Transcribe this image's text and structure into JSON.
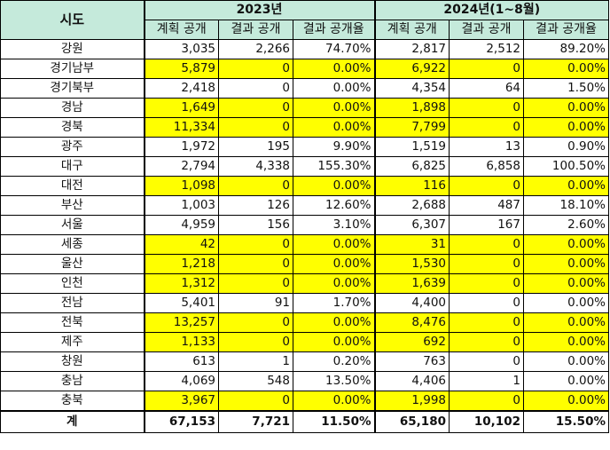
{
  "header": {
    "region": "시도",
    "year_2023": "2023년",
    "year_2024": "2024년(1~8월)",
    "cols": [
      "계획 공개",
      "결과 공개",
      "결과 공개율"
    ]
  },
  "rows": [
    {
      "region": "강원",
      "p23": "3,035",
      "r23": "2,266",
      "pct23": "74.70%",
      "p24": "2,817",
      "r24": "2,512",
      "pct24": "89.20%",
      "hl23": false,
      "hl24": false
    },
    {
      "region": "경기남부",
      "p23": "5,879",
      "r23": "0",
      "pct23": "0.00%",
      "p24": "6,922",
      "r24": "0",
      "pct24": "0.00%",
      "hl23": true,
      "hl24": true
    },
    {
      "region": "경기북부",
      "p23": "2,418",
      "r23": "0",
      "pct23": "0.00%",
      "p24": "4,354",
      "r24": "64",
      "pct24": "1.50%",
      "hl23": false,
      "hl24": false
    },
    {
      "region": "경남",
      "p23": "1,649",
      "r23": "0",
      "pct23": "0.00%",
      "p24": "1,898",
      "r24": "0",
      "pct24": "0.00%",
      "hl23": true,
      "hl24": true
    },
    {
      "region": "경북",
      "p23": "11,334",
      "r23": "0",
      "pct23": "0.00%",
      "p24": "7,799",
      "r24": "0",
      "pct24": "0.00%",
      "hl23": true,
      "hl24": true
    },
    {
      "region": "광주",
      "p23": "1,972",
      "r23": "195",
      "pct23": "9.90%",
      "p24": "1,519",
      "r24": "13",
      "pct24": "0.90%",
      "hl23": false,
      "hl24": false
    },
    {
      "region": "대구",
      "p23": "2,794",
      "r23": "4,338",
      "pct23": "155.30%",
      "p24": "6,825",
      "r24": "6,858",
      "pct24": "100.50%",
      "hl23": false,
      "hl24": false
    },
    {
      "region": "대전",
      "p23": "1,098",
      "r23": "0",
      "pct23": "0.00%",
      "p24": "116",
      "r24": "0",
      "pct24": "0.00%",
      "hl23": true,
      "hl24": true
    },
    {
      "region": "부산",
      "p23": "1,003",
      "r23": "126",
      "pct23": "12.60%",
      "p24": "2,688",
      "r24": "487",
      "pct24": "18.10%",
      "hl23": false,
      "hl24": false
    },
    {
      "region": "서울",
      "p23": "4,959",
      "r23": "156",
      "pct23": "3.10%",
      "p24": "6,307",
      "r24": "167",
      "pct24": "2.60%",
      "hl23": false,
      "hl24": false
    },
    {
      "region": "세종",
      "p23": "42",
      "r23": "0",
      "pct23": "0.00%",
      "p24": "31",
      "r24": "0",
      "pct24": "0.00%",
      "hl23": true,
      "hl24": true
    },
    {
      "region": "울산",
      "p23": "1,218",
      "r23": "0",
      "pct23": "0.00%",
      "p24": "1,530",
      "r24": "0",
      "pct24": "0.00%",
      "hl23": true,
      "hl24": true
    },
    {
      "region": "인천",
      "p23": "1,312",
      "r23": "0",
      "pct23": "0.00%",
      "p24": "1,639",
      "r24": "0",
      "pct24": "0.00%",
      "hl23": true,
      "hl24": true
    },
    {
      "region": "전남",
      "p23": "5,401",
      "r23": "91",
      "pct23": "1.70%",
      "p24": "4,400",
      "r24": "0",
      "pct24": "0.00%",
      "hl23": false,
      "hl24": false
    },
    {
      "region": "전북",
      "p23": "13,257",
      "r23": "0",
      "pct23": "0.00%",
      "p24": "8,476",
      "r24": "0",
      "pct24": "0.00%",
      "hl23": true,
      "hl24": true
    },
    {
      "region": "제주",
      "p23": "1,133",
      "r23": "0",
      "pct23": "0.00%",
      "p24": "692",
      "r24": "0",
      "pct24": "0.00%",
      "hl23": true,
      "hl24": true
    },
    {
      "region": "창원",
      "p23": "613",
      "r23": "1",
      "pct23": "0.20%",
      "p24": "763",
      "r24": "0",
      "pct24": "0.00%",
      "hl23": false,
      "hl24": false
    },
    {
      "region": "충남",
      "p23": "4,069",
      "r23": "548",
      "pct23": "13.50%",
      "p24": "4,406",
      "r24": "1",
      "pct24": "0.00%",
      "hl23": false,
      "hl24": false
    },
    {
      "region": "충북",
      "p23": "3,967",
      "r23": "0",
      "pct23": "0.00%",
      "p24": "1,998",
      "r24": "0",
      "pct24": "0.00%",
      "hl23": true,
      "hl24": true
    }
  ],
  "total": {
    "region": "계",
    "p23": "67,153",
    "r23": "7,721",
    "pct23": "11.50%",
    "p24": "65,180",
    "r24": "10,102",
    "pct24": "15.50%"
  },
  "colors": {
    "header_bg": "#c5eadb",
    "highlight": "#ffff00"
  }
}
